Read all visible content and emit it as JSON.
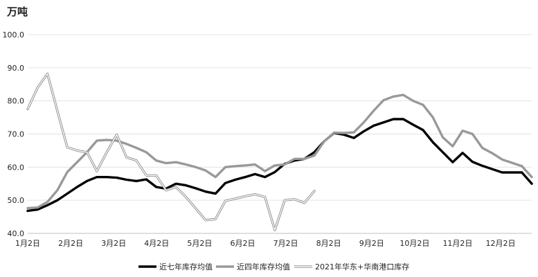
{
  "chart_data": {
    "type": "line",
    "ylabel": "万吨",
    "ylim": [
      40,
      100
    ],
    "yticks": [
      "40.0",
      "50.0",
      "60.0",
      "70.0",
      "80.0",
      "90.0",
      "100.0"
    ],
    "x_tick_labels": [
      "1月2日",
      "2月2日",
      "3月2日",
      "4月2日",
      "5月2日",
      "6月2日",
      "7月2日",
      "8月2日",
      "9月2日",
      "10月2日",
      "11月2日",
      "12月2日"
    ],
    "grid": "horizontal",
    "legend": "bottom",
    "x_unit": "week",
    "series": [
      {
        "name": "近七年库存均值",
        "color": "#000000",
        "style": "solid-thick",
        "x": [
          0,
          1,
          2,
          3,
          4,
          5,
          6,
          7,
          8,
          9,
          10,
          11,
          12,
          13,
          14,
          15,
          16,
          17,
          18,
          19,
          20,
          21,
          22,
          23,
          24,
          25,
          26,
          27,
          28,
          29,
          30,
          31,
          32,
          33,
          34,
          35,
          36,
          37,
          38,
          39,
          40,
          41,
          42,
          43,
          44,
          45,
          46,
          47,
          48,
          49,
          50,
          51
        ],
        "values": [
          46.8,
          47.2,
          48.5,
          50.0,
          52.0,
          54.0,
          55.8,
          57.0,
          57.0,
          56.8,
          56.2,
          55.8,
          56.3,
          54.0,
          53.5,
          55.0,
          54.5,
          53.6,
          52.6,
          52.0,
          55.2,
          56.2,
          57.0,
          57.9,
          57.0,
          58.5,
          61.0,
          62.0,
          62.5,
          64.5,
          67.8,
          70.3,
          69.8,
          68.8,
          70.8,
          72.5,
          73.5,
          74.5,
          74.5,
          72.8,
          71.2,
          67.5,
          64.5,
          61.5,
          64.3,
          61.6,
          60.4,
          59.4,
          58.4,
          58.4,
          58.4,
          55.0
        ]
      },
      {
        "name": "近四年库存均值",
        "color": "#999999",
        "style": "solid-thick",
        "x": [
          0,
          1,
          2,
          3,
          4,
          5,
          6,
          7,
          8,
          9,
          10,
          11,
          12,
          13,
          14,
          15,
          16,
          17,
          18,
          19,
          20,
          21,
          22,
          23,
          24,
          25,
          26,
          27,
          28,
          29,
          30,
          31,
          32,
          33,
          34,
          35,
          36,
          37,
          38,
          39,
          40,
          41,
          42,
          43,
          44,
          45,
          46,
          47,
          48,
          49,
          50,
          51
        ],
        "values": [
          47.6,
          47.8,
          49.5,
          53.0,
          58.5,
          61.5,
          64.5,
          68.0,
          68.2,
          68.0,
          67.0,
          65.8,
          64.5,
          62.0,
          61.2,
          61.5,
          60.8,
          60.0,
          59.0,
          57.0,
          60.0,
          60.3,
          60.5,
          60.8,
          58.8,
          60.5,
          60.8,
          62.5,
          62.5,
          63.5,
          67.8,
          70.4,
          70.3,
          70.5,
          73.5,
          77.0,
          80.2,
          81.3,
          81.8,
          80.0,
          78.8,
          75.0,
          69.0,
          66.3,
          71.0,
          70.0,
          65.8,
          64.2,
          62.3,
          61.3,
          60.3,
          57.0
        ]
      },
      {
        "name": "2021年华东+华南港口库存",
        "color": "#888888",
        "style": "double-hollow",
        "x": [
          0,
          1,
          2,
          3,
          4,
          5,
          6,
          7,
          8,
          9,
          10,
          11,
          12,
          13,
          14,
          15,
          16,
          17,
          18,
          19,
          20,
          21,
          22,
          23,
          24,
          25,
          26,
          27,
          28,
          29
        ],
        "values": [
          77.5,
          84.0,
          88.2,
          77.0,
          66.0,
          65.0,
          64.5,
          58.8,
          64.5,
          69.8,
          63.0,
          62.0,
          57.5,
          57.5,
          53.0,
          54.0,
          51.0,
          47.5,
          44.0,
          44.3,
          49.8,
          50.5,
          51.2,
          51.8,
          51.0,
          41.0,
          50.0,
          50.3,
          49.2,
          52.8
        ]
      }
    ]
  }
}
